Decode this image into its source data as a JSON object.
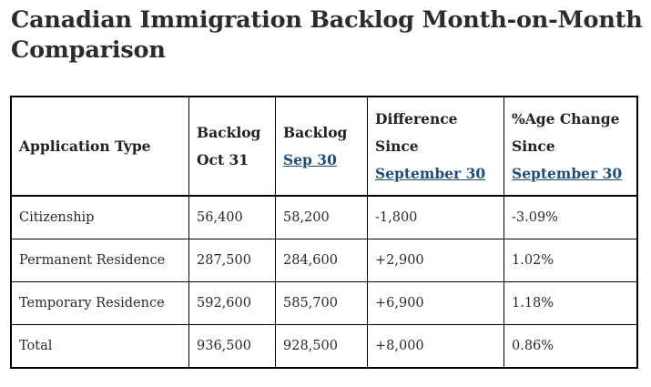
{
  "title": "Canadian Immigration Backlog Month-on-Month Comparison",
  "table": {
    "headers": {
      "type": "Application Type",
      "oct": [
        "Backlog",
        "Oct 31"
      ],
      "sep": [
        "Backlog",
        "Sep 30"
      ],
      "diff": [
        "Difference",
        "Since",
        "September 30"
      ],
      "pct": [
        "%Age Change",
        "Since",
        "September 30"
      ]
    },
    "rows": [
      {
        "type": "Citizenship",
        "oct": "56,400",
        "sep": "58,200",
        "diff": "-1,800",
        "pct": "-3.09%"
      },
      {
        "type": "Permanent Residence",
        "oct": "287,500",
        "sep": "284,600",
        "diff": "+2,900",
        "pct": "1.02%"
      },
      {
        "type": "Temporary Residence",
        "oct": "592,600",
        "sep": "585,700",
        "diff": "+6,900",
        "pct": "1.18%"
      },
      {
        "type": "Total",
        "oct": "936,500",
        "sep": "928,500",
        "diff": "+8,000",
        "pct": "0.86%"
      }
    ]
  },
  "colors": {
    "link": "#1f4e79",
    "border": "#000000",
    "text": "#2a2a2a"
  }
}
